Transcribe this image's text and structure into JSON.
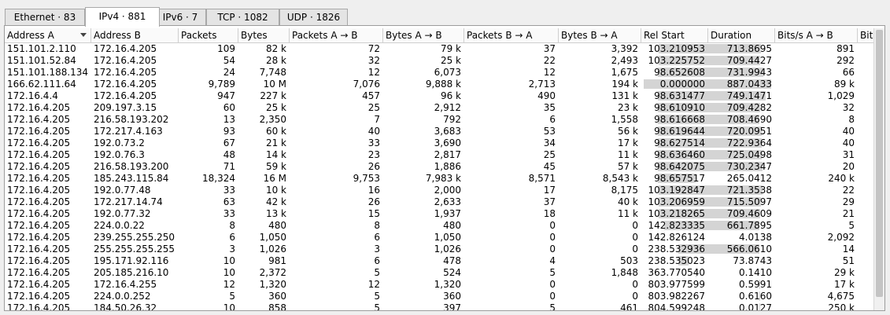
{
  "tabs": [
    {
      "label": "Ethernet · 83",
      "active": false
    },
    {
      "label": "IPv4 · 881",
      "active": true
    },
    {
      "label": "IPv6 · 7",
      "active": false
    },
    {
      "label": "TCP · 1082",
      "active": false
    },
    {
      "label": "UDP · 1826",
      "active": false
    }
  ],
  "columns": [
    "Address A",
    "Address B",
    "Packets",
    "Bytes",
    "Packets A → B",
    "Bytes A → B",
    "Packets B → A",
    "Bytes B → A",
    "Rel Start",
    "Duration",
    "Bits/s A → B",
    "Bit"
  ],
  "sorted_column": "Address A",
  "bar_color": "#d4d4d4",
  "rows": [
    {
      "a": "151.101.2.110",
      "b": "172.16.4.205",
      "packets": "109",
      "bytes": "82 k",
      "pab": "72",
      "bab": "79 k",
      "pba": "37",
      "bba": "3,392",
      "start": "103.210953",
      "dur": "713.8695",
      "bps": "891",
      "start_frac": 0.1163,
      "dur_frac": 0.8048
    },
    {
      "a": "151.101.52.84",
      "b": "172.16.4.205",
      "packets": "54",
      "bytes": "28 k",
      "pab": "32",
      "bab": "25 k",
      "pba": "22",
      "bba": "2,493",
      "start": "103.225752",
      "dur": "709.4427",
      "bps": "292",
      "start_frac": 0.1164,
      "dur_frac": 0.7998
    },
    {
      "a": "151.101.188.134",
      "b": "172.16.4.205",
      "packets": "24",
      "bytes": "7,748",
      "pab": "12",
      "bab": "6,073",
      "pba": "12",
      "bba": "1,675",
      "start": "98.652608",
      "dur": "731.9943",
      "bps": "66",
      "start_frac": 0.1112,
      "dur_frac": 0.8253
    },
    {
      "a": "166.62.111.64",
      "b": "172.16.4.205",
      "packets": "9,789",
      "bytes": "10 M",
      "pab": "7,076",
      "bab": "9,888 k",
      "pba": "2,713",
      "bba": "194 k",
      "start": "0.000000",
      "dur": "887.0433",
      "bps": "89 k",
      "start_frac": 0.0,
      "dur_frac": 1.0
    },
    {
      "a": "172.16.4.4",
      "b": "172.16.4.205",
      "packets": "947",
      "bytes": "227 k",
      "pab": "457",
      "bab": "96 k",
      "pba": "490",
      "bba": "131 k",
      "start": "98.631477",
      "dur": "749.1471",
      "bps": "1,029",
      "start_frac": 0.1112,
      "dur_frac": 0.8446
    },
    {
      "a": "172.16.4.205",
      "b": "209.197.3.15",
      "packets": "60",
      "bytes": "25 k",
      "pab": "25",
      "bab": "2,912",
      "pba": "35",
      "bba": "23 k",
      "start": "98.610910",
      "dur": "709.4282",
      "bps": "32",
      "start_frac": 0.1112,
      "dur_frac": 0.7998
    },
    {
      "a": "172.16.4.205",
      "b": "216.58.193.202",
      "packets": "13",
      "bytes": "2,350",
      "pab": "7",
      "bab": "792",
      "pba": "6",
      "bba": "1,558",
      "start": "98.616668",
      "dur": "708.4690",
      "bps": "8",
      "start_frac": 0.1112,
      "dur_frac": 0.7987
    },
    {
      "a": "172.16.4.205",
      "b": "172.217.4.163",
      "packets": "93",
      "bytes": "60 k",
      "pab": "40",
      "bab": "3,683",
      "pba": "53",
      "bba": "56 k",
      "start": "98.619644",
      "dur": "720.0951",
      "bps": "40",
      "start_frac": 0.1112,
      "dur_frac": 0.8118
    },
    {
      "a": "172.16.4.205",
      "b": "192.0.73.2",
      "packets": "67",
      "bytes": "21 k",
      "pab": "33",
      "bab": "3,690",
      "pba": "34",
      "bba": "17 k",
      "start": "98.627514",
      "dur": "722.9364",
      "bps": "40",
      "start_frac": 0.1112,
      "dur_frac": 0.815
    },
    {
      "a": "172.16.4.205",
      "b": "192.0.76.3",
      "packets": "48",
      "bytes": "14 k",
      "pab": "23",
      "bab": "2,817",
      "pba": "25",
      "bba": "11 k",
      "start": "98.636460",
      "dur": "725.0498",
      "bps": "31",
      "start_frac": 0.1112,
      "dur_frac": 0.8174
    },
    {
      "a": "172.16.4.205",
      "b": "216.58.193.200",
      "packets": "71",
      "bytes": "59 k",
      "pab": "26",
      "bab": "1,886",
      "pba": "45",
      "bba": "57 k",
      "start": "98.642075",
      "dur": "730.2347",
      "bps": "20",
      "start_frac": 0.1112,
      "dur_frac": 0.8232
    },
    {
      "a": "172.16.4.205",
      "b": "185.243.115.84",
      "packets": "18,324",
      "bytes": "16 M",
      "pab": "9,753",
      "bab": "7,983 k",
      "pba": "8,571",
      "bba": "8,543 k",
      "start": "98.657517",
      "dur": "265.0412",
      "bps": "240 k",
      "start_frac": 0.1112,
      "dur_frac": 0.2988
    },
    {
      "a": "172.16.4.205",
      "b": "192.0.77.48",
      "packets": "33",
      "bytes": "10 k",
      "pab": "16",
      "bab": "2,000",
      "pba": "17",
      "bba": "8,175",
      "start": "103.192847",
      "dur": "721.3538",
      "bps": "22",
      "start_frac": 0.1163,
      "dur_frac": 0.8132
    },
    {
      "a": "172.16.4.205",
      "b": "172.217.14.74",
      "packets": "63",
      "bytes": "42 k",
      "pab": "26",
      "bab": "2,633",
      "pba": "37",
      "bba": "40 k",
      "start": "103.206959",
      "dur": "715.5097",
      "bps": "29",
      "start_frac": 0.1163,
      "dur_frac": 0.8066
    },
    {
      "a": "172.16.4.205",
      "b": "192.0.77.32",
      "packets": "33",
      "bytes": "13 k",
      "pab": "15",
      "bab": "1,937",
      "pba": "18",
      "bba": "11 k",
      "start": "103.218265",
      "dur": "709.4609",
      "bps": "21",
      "start_frac": 0.1163,
      "dur_frac": 0.7998
    },
    {
      "a": "172.16.4.205",
      "b": "224.0.0.22",
      "packets": "8",
      "bytes": "480",
      "pab": "8",
      "bab": "480",
      "pba": "0",
      "bba": "0",
      "start": "142.823335",
      "dur": "661.7895",
      "bps": "5",
      "start_frac": 0.161,
      "dur_frac": 0.7461
    },
    {
      "a": "172.16.4.205",
      "b": "239.255.255.250",
      "packets": "6",
      "bytes": "1,050",
      "pab": "6",
      "bab": "1,050",
      "pba": "0",
      "bba": "0",
      "start": "142.826124",
      "dur": "4.0138",
      "bps": "2,092",
      "start_frac": 0.161,
      "dur_frac": 0.0045
    },
    {
      "a": "172.16.4.205",
      "b": "255.255.255.255",
      "packets": "3",
      "bytes": "1,026",
      "pab": "3",
      "bab": "1,026",
      "pba": "0",
      "bba": "0",
      "start": "238.532936",
      "dur": "566.0610",
      "bps": "14",
      "start_frac": 0.2689,
      "dur_frac": 0.6381
    },
    {
      "a": "172.16.4.205",
      "b": "195.171.92.116",
      "packets": "10",
      "bytes": "981",
      "pab": "6",
      "bab": "478",
      "pba": "4",
      "bba": "503",
      "start": "238.535023",
      "dur": "73.8743",
      "bps": "51",
      "start_frac": 0.2689,
      "dur_frac": 0.0833
    },
    {
      "a": "172.16.4.205",
      "b": "205.185.216.10",
      "packets": "10",
      "bytes": "2,372",
      "pab": "5",
      "bab": "524",
      "pba": "5",
      "bba": "1,848",
      "start": "363.770540",
      "dur": "0.1410",
      "bps": "29 k",
      "start_frac": 0.4101,
      "dur_frac": 0.0002
    },
    {
      "a": "172.16.4.205",
      "b": "172.16.4.255",
      "packets": "12",
      "bytes": "1,320",
      "pab": "12",
      "bab": "1,320",
      "pba": "0",
      "bba": "0",
      "start": "803.977599",
      "dur": "0.5991",
      "bps": "17 k",
      "start_frac": 0.9064,
      "dur_frac": 0.0007
    },
    {
      "a": "172.16.4.205",
      "b": "224.0.0.252",
      "packets": "5",
      "bytes": "360",
      "pab": "5",
      "bab": "360",
      "pba": "0",
      "bba": "0",
      "start": "803.982267",
      "dur": "0.6160",
      "bps": "4,675",
      "start_frac": 0.9064,
      "dur_frac": 0.0007
    },
    {
      "a": "172.16.4.205",
      "b": "184.50.26.32",
      "packets": "10",
      "bytes": "858",
      "pab": "5",
      "bab": "397",
      "pba": "5",
      "bba": "461",
      "start": "804.599248",
      "dur": "0.0127",
      "bps": "250 k",
      "start_frac": 0.9071,
      "dur_frac": 0.0
    }
  ]
}
